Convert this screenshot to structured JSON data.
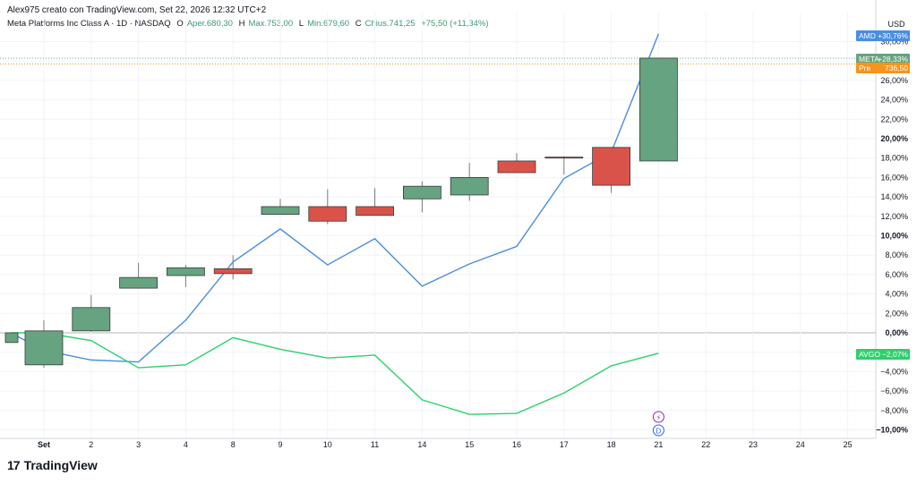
{
  "header": {
    "author_line": "Alex975 creato con TradingView.com, Set 22, 2026 12:32 UTC+2",
    "symbol_line": "Meta Platforms Inc Class A · 1D · NASDAQ",
    "open_label": "O",
    "open_value": "Aper.680,30",
    "high_label": "H",
    "high_value": "Max.753,00",
    "low_label": "L",
    "low_value": "Min.679,60",
    "close_label": "C",
    "close_value": "Chius.741,25",
    "change_value": "+75,50 (+11,34%)"
  },
  "logo": {
    "text": "TradingView",
    "mark": "17"
  },
  "colors": {
    "up": "#66a380",
    "down": "#d9534a",
    "wick": "#7a7a7a",
    "amd": "#4a8de0",
    "avgo": "#2bd16a",
    "meta_tag": "#66a380",
    "pre": "#f7941d"
  },
  "chart_data": {
    "type": "candlestick",
    "currency": "USD",
    "y_unit": "%",
    "ylim": [
      -11.0,
      33.0
    ],
    "y_ticks": [
      30,
      28,
      26,
      24,
      22,
      20,
      18,
      16,
      14,
      12,
      10,
      8,
      6,
      4,
      2,
      0,
      -2,
      -4,
      -6,
      -8,
      -10
    ],
    "y_tick_labels": [
      "30,00%",
      "28,00%",
      "26,00%",
      "24,00%",
      "22,00%",
      "20,00%",
      "18,00%",
      "16,00%",
      "14,00%",
      "12,00%",
      "10,00%",
      "8,00%",
      "6,00%",
      "4,00%",
      "2,00%",
      "0,00%",
      "−2,00%",
      "−4,00%",
      "−6,00%",
      "−8,00%",
      "−10,00%"
    ],
    "bold_ticks": [
      20,
      10,
      0,
      -10
    ],
    "x_labels": [
      "Set",
      "2",
      "3",
      "4",
      "8",
      "9",
      "10",
      "11",
      "14",
      "15",
      "16",
      "17",
      "18",
      "21",
      "22",
      "23",
      "24",
      "25"
    ],
    "candles": [
      {
        "x": "prev",
        "open": -1.0,
        "high": -0.2,
        "low": -1.0,
        "close": 0.0
      },
      {
        "x": "Set",
        "open": -3.3,
        "high": 1.3,
        "low": -3.6,
        "close": 0.2
      },
      {
        "x": "2",
        "open": 0.2,
        "high": 3.9,
        "low": 0.1,
        "close": 2.6
      },
      {
        "x": "3",
        "open": 4.6,
        "high": 7.2,
        "low": 4.6,
        "close": 5.7
      },
      {
        "x": "4",
        "open": 5.9,
        "high": 7.0,
        "low": 4.7,
        "close": 6.7
      },
      {
        "x": "8",
        "open": 6.6,
        "high": 8.0,
        "low": 5.5,
        "close": 6.1
      },
      {
        "x": "9",
        "open": 12.2,
        "high": 13.8,
        "low": 12.2,
        "close": 13.0
      },
      {
        "x": "10",
        "open": 13.0,
        "high": 14.8,
        "low": 11.2,
        "close": 11.5
      },
      {
        "x": "11",
        "open": 13.0,
        "high": 14.9,
        "low": 12.1,
        "close": 12.1
      },
      {
        "x": "14",
        "open": 13.8,
        "high": 15.6,
        "low": 12.4,
        "close": 15.1
      },
      {
        "x": "15",
        "open": 14.2,
        "high": 17.5,
        "low": 13.6,
        "close": 16.0
      },
      {
        "x": "16",
        "open": 17.7,
        "high": 18.5,
        "low": 16.5,
        "close": 16.5
      },
      {
        "x": "17",
        "open": 18.1,
        "high": 18.2,
        "low": 16.3,
        "close": 18.0
      },
      {
        "x": "18",
        "open": 19.1,
        "high": 19.1,
        "low": 14.4,
        "close": 15.2
      },
      {
        "x": "21",
        "open": 17.7,
        "high": 28.3,
        "low": 17.7,
        "close": 28.3
      }
    ],
    "series": [
      {
        "name": "AMD",
        "x": [
          "prev",
          "Set",
          "2",
          "3",
          "4",
          "8",
          "9",
          "10",
          "11",
          "14",
          "15",
          "16",
          "17",
          "18",
          "21"
        ],
        "values": [
          0.0,
          -1.8,
          -2.8,
          -3.0,
          1.3,
          7.3,
          10.7,
          7.0,
          9.7,
          4.8,
          7.1,
          8.9,
          15.9,
          18.6,
          30.8
        ],
        "tag": "AMD",
        "tag_value": "+30,76%"
      },
      {
        "name": "AVGO",
        "x": [
          "prev",
          "Set",
          "2",
          "3",
          "4",
          "8",
          "9",
          "10",
          "11",
          "14",
          "15",
          "16",
          "17",
          "18",
          "21"
        ],
        "values": [
          0.0,
          0.0,
          -0.8,
          -3.6,
          -3.3,
          -0.5,
          -1.7,
          -2.6,
          -2.3,
          -6.9,
          -8.4,
          -8.3,
          -6.2,
          -3.4,
          -2.1
        ],
        "tag": "AVGO",
        "tag_value": "−2,07%"
      }
    ],
    "last_tags": {
      "meta_label": "META",
      "meta_value": "+28,33%",
      "pre_label": "Pre",
      "pre_value": "736,50"
    },
    "pre_level": 27.7,
    "event_markers": [
      {
        "x": "21",
        "symbol": "⚡"
      },
      {
        "x": "21",
        "symbol": "D"
      }
    ]
  }
}
